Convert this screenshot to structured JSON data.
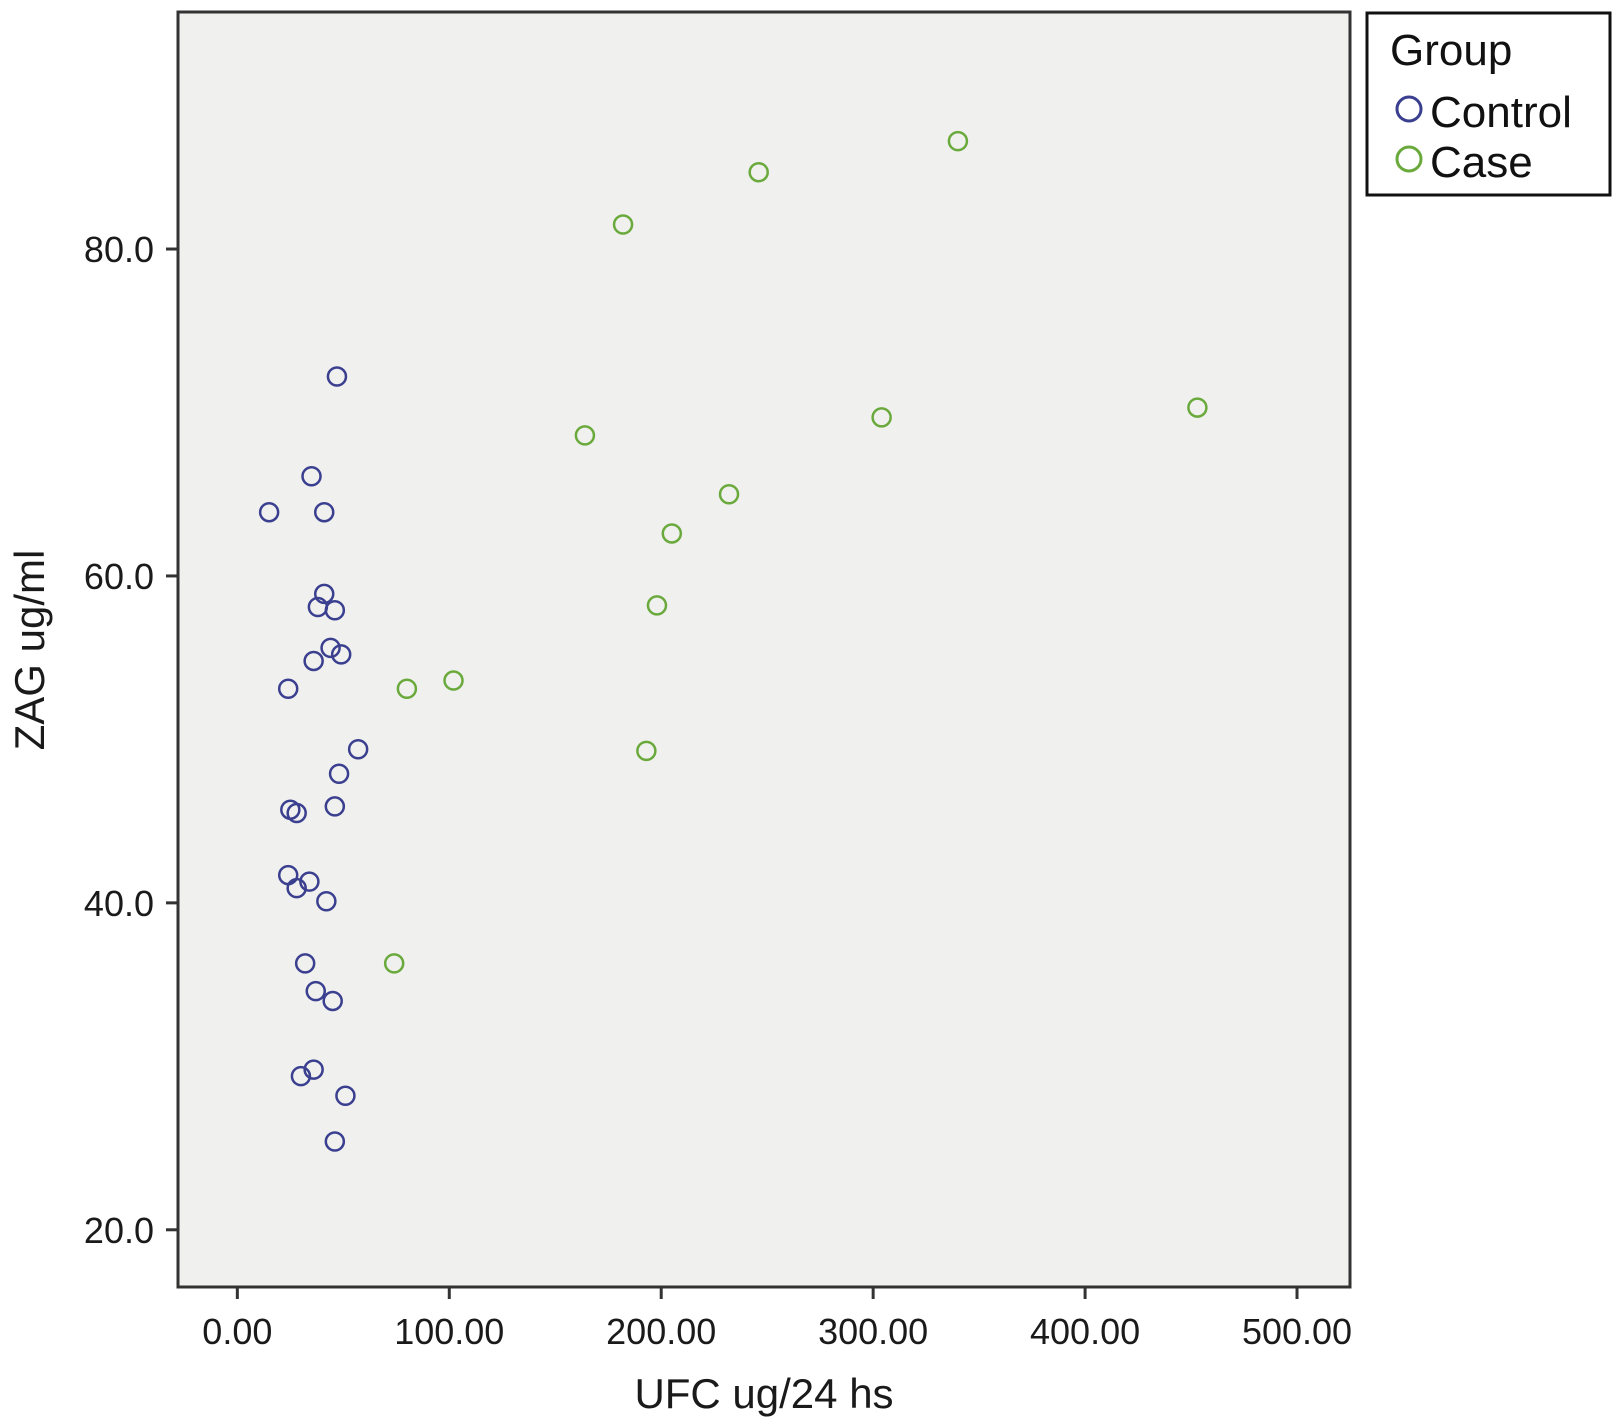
{
  "chart_data": {
    "type": "scatter",
    "xlabel": "UFC ug/24 hs",
    "ylabel": "ZAG ug/ml",
    "xlim": [
      -28,
      525
    ],
    "ylim": [
      16.5,
      94.5
    ],
    "x_ticks": [
      0,
      100,
      200,
      300,
      400,
      500
    ],
    "x_tick_labels": [
      "0.00",
      "100.00",
      "200.00",
      "300.00",
      "400.00",
      "500.00"
    ],
    "y_ticks": [
      20,
      40,
      60,
      80
    ],
    "y_tick_labels": [
      "20.0",
      "40.0",
      "60.0",
      "80.0"
    ],
    "grid": false,
    "plot_background": "#f0f0ee",
    "legend": {
      "title": "Group",
      "position": "outside-top-right"
    },
    "series": [
      {
        "name": "Control",
        "color": "#3a3f8f",
        "points": [
          [
            47,
            72.2
          ],
          [
            35,
            66.1
          ],
          [
            15,
            63.9
          ],
          [
            41,
            63.9
          ],
          [
            41,
            58.9
          ],
          [
            38,
            58.1
          ],
          [
            46,
            57.9
          ],
          [
            44,
            55.6
          ],
          [
            49,
            55.2
          ],
          [
            36,
            54.8
          ],
          [
            24,
            53.1
          ],
          [
            57,
            49.4
          ],
          [
            48,
            47.9
          ],
          [
            25,
            45.7
          ],
          [
            28,
            45.5
          ],
          [
            46,
            45.9
          ],
          [
            24,
            41.7
          ],
          [
            34,
            41.3
          ],
          [
            28,
            40.9
          ],
          [
            42,
            40.1
          ],
          [
            32,
            36.3
          ],
          [
            37,
            34.6
          ],
          [
            45,
            34.0
          ],
          [
            36,
            29.8
          ],
          [
            30,
            29.4
          ],
          [
            51,
            28.2
          ],
          [
            46,
            25.4
          ]
        ]
      },
      {
        "name": "Case",
        "color": "#6aaa3c",
        "points": [
          [
            340,
            86.6
          ],
          [
            246,
            84.7
          ],
          [
            182,
            81.5
          ],
          [
            453,
            70.3
          ],
          [
            304,
            69.7
          ],
          [
            164,
            68.6
          ],
          [
            232,
            65.0
          ],
          [
            205,
            62.6
          ],
          [
            198,
            58.2
          ],
          [
            102,
            53.6
          ],
          [
            80,
            53.1
          ],
          [
            193,
            49.3
          ],
          [
            74,
            36.3
          ]
        ]
      }
    ]
  }
}
